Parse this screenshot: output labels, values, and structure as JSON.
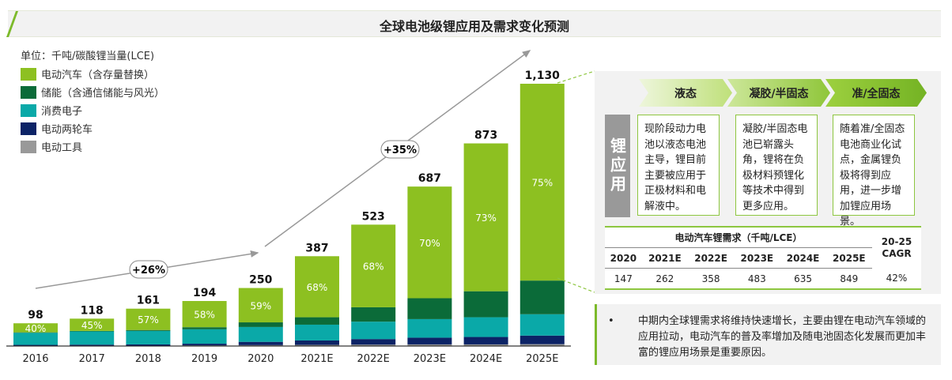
{
  "title": "全球电池级锂应用及需求变化预测",
  "colors": {
    "ev": "#8dc021",
    "ess": "#0b6b39",
    "ce": "#0aa9a8",
    "twowheel": "#0c2366",
    "tools": "#999999",
    "accent": "#7cba2a"
  },
  "chart_data": {
    "type": "bar",
    "stacked": true,
    "unit": "单位：千吨/碳酸锂当量(LCE)",
    "categories": [
      "2016",
      "2017",
      "2018",
      "2019",
      "2020",
      "2021E",
      "2022E",
      "2023E",
      "2024E",
      "2025E"
    ],
    "totals": [
      "98",
      "118",
      "161",
      "194",
      "250",
      "387",
      "523",
      "687",
      "873",
      "1,130"
    ],
    "total_values": [
      98,
      118,
      161,
      194,
      250,
      387,
      523,
      687,
      873,
      1130
    ],
    "ev_share_labels": [
      "40%",
      "45%",
      "57%",
      "58%",
      "59%",
      "68%",
      "68%",
      "70%",
      "73%",
      "75%"
    ],
    "series": [
      {
        "name": "电动汽车（含存量替换）",
        "key": "ev",
        "values": [
          39,
          53,
          92,
          113,
          148,
          263,
          356,
          481,
          637,
          848
        ]
      },
      {
        "name": "储能（含通信储能与风光）",
        "key": "ess",
        "values": [
          2,
          2,
          4,
          9,
          20,
          32,
          62,
          90,
          112,
          145
        ]
      },
      {
        "name": "消费电子",
        "key": "ce",
        "values": [
          52,
          57,
          58,
          62,
          64,
          68,
          75,
          80,
          85,
          92
        ]
      },
      {
        "name": "电动两轮车",
        "key": "twowheel",
        "values": [
          3,
          4,
          5,
          7,
          14,
          19,
          24,
          29,
          32,
          37
        ]
      },
      {
        "name": "电动工具",
        "key": "tools",
        "values": [
          2,
          2,
          2,
          3,
          4,
          5,
          6,
          7,
          7,
          8
        ]
      }
    ],
    "annotations": [
      {
        "text": "+26%",
        "from": "2016",
        "to": "2020"
      },
      {
        "text": "+35%",
        "from": "2020",
        "to": "2025E"
      }
    ],
    "ylim": [
      0,
      1200
    ]
  },
  "panel": {
    "stages": [
      "液态",
      "凝胶/半固态",
      "准/全固态"
    ],
    "side_label": "锂应用",
    "boxes": [
      "现阶段动力电池以液态电池主导，锂目前主要被应用于正极材料和电解液中。",
      "凝胶/半固态电池已崭露头角，锂将在负极材料预锂化等技术中得到更多应用。",
      "随着准/全固态电池商业化试点，金属锂负极将得到应用，进一步增加锂应用场景。"
    ],
    "table": {
      "title": "电动汽车锂需求（千吨/LCE）",
      "cagr_header": "20-25 CAGR",
      "years": [
        "2020",
        "2021E",
        "2022E",
        "2023E",
        "2024E",
        "2025E"
      ],
      "values": [
        "147",
        "262",
        "358",
        "483",
        "635",
        "849"
      ],
      "cagr": "42%"
    }
  },
  "note": {
    "bullet": "•",
    "text": "中期内全球锂需求将维持快速增长，主要由锂在电动汽车领域的应用拉动，电动汽车的普及率增加及随电池固态化发展而更加丰富的锂应用场景是重要原因。"
  }
}
